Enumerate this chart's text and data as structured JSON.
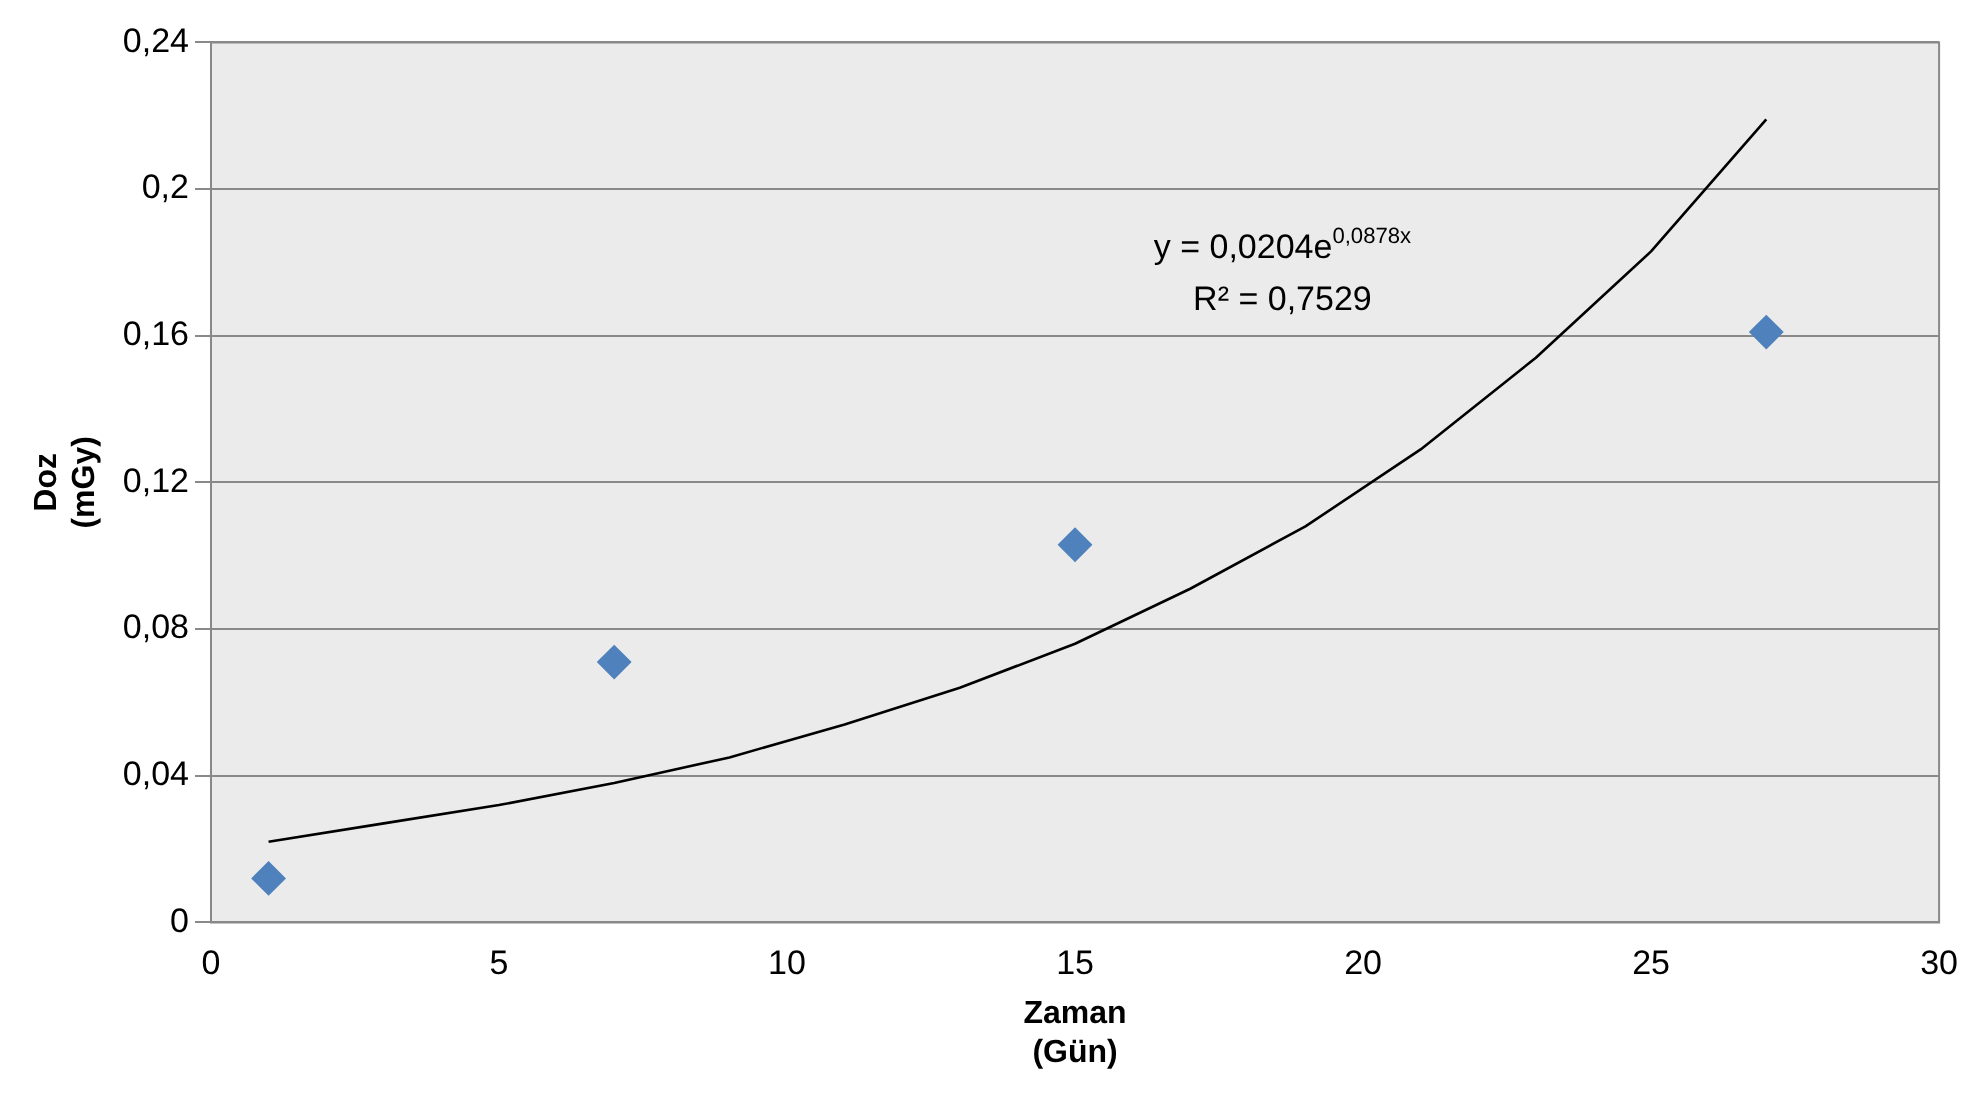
{
  "chart_data": {
    "type": "scatter",
    "xlabel": "Zaman (Gün)",
    "ylabel": "Doz (mGy)",
    "series": [
      {
        "type": "scatter",
        "color": "#4f81bd",
        "x": [
          1,
          7,
          15,
          27
        ],
        "values": [
          0.012,
          0.071,
          0.103,
          0.161
        ],
        "marker": "diamond"
      },
      {
        "type": "line",
        "color": "#000000",
        "x": [
          1,
          3,
          5,
          7,
          9,
          11,
          13,
          15,
          17,
          19,
          21,
          23,
          25,
          27
        ],
        "values": [
          0.022,
          0.027,
          0.032,
          0.038,
          0.045,
          0.054,
          0.064,
          0.076,
          0.091,
          0.108,
          0.129,
          0.154,
          0.183,
          0.219
        ],
        "marker": "none"
      }
    ],
    "xlim": [
      0,
      30
    ],
    "xticks": [
      0,
      5,
      10,
      15,
      20,
      25,
      30
    ],
    "ylim": [
      0,
      0.24
    ],
    "yticks": [
      {
        "value": 0,
        "label": "0"
      },
      {
        "value": 0.04,
        "label": "0,04"
      },
      {
        "value": 0.08,
        "label": "0,08"
      },
      {
        "value": 0.12,
        "label": "0,12"
      },
      {
        "value": 0.16,
        "label": "0,16"
      },
      {
        "value": 0.2,
        "label": "0,2"
      },
      {
        "value": 0.24,
        "label": "0,24"
      }
    ],
    "grid": "y",
    "legend": false,
    "annotations": [
      "y = 0,0204e$^{0,0878x}$",
      "R² = 0,7529"
    ]
  }
}
